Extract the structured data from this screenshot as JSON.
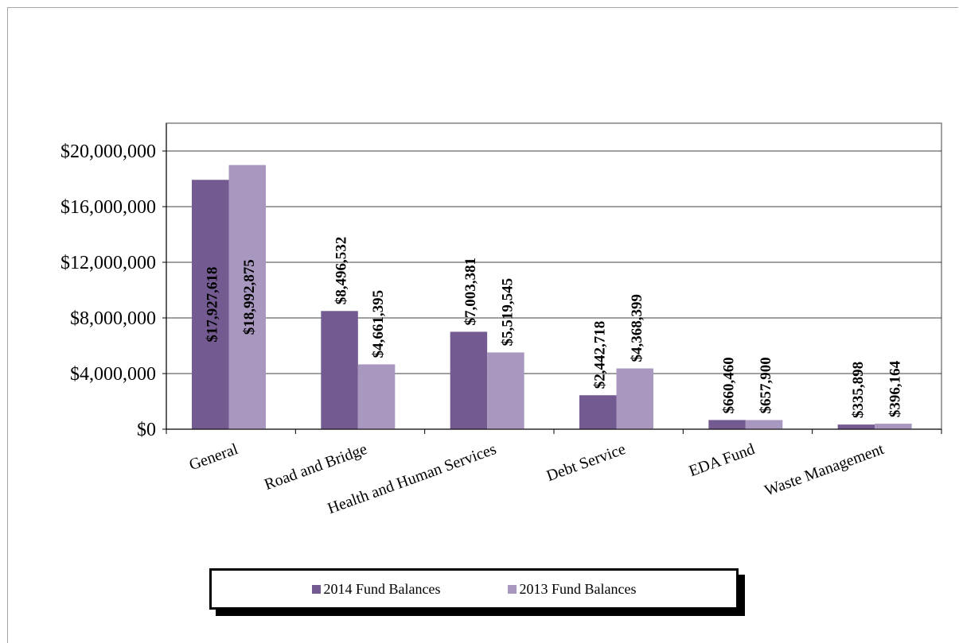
{
  "chart_data": {
    "type": "bar",
    "title": "",
    "xlabel": "",
    "ylabel": "",
    "categories": [
      "General",
      "Road and Bridge",
      "Health and Human Services",
      "Debt Service",
      "EDA Fund",
      "Waste Management"
    ],
    "series": [
      {
        "name": "2014 Fund Balances",
        "values": [
          17927618,
          8496532,
          7003381,
          2442718,
          660460,
          335898
        ],
        "labels": [
          "$17,927,618",
          "$8,496,532",
          "$7,003,381",
          "$2,442,718",
          "$660,460",
          "$335,898"
        ]
      },
      {
        "name": "2013 Fund Balances",
        "values": [
          18992875,
          4661395,
          5519545,
          4368399,
          657900,
          396164
        ],
        "labels": [
          "$18,992,875",
          "$4,661,395",
          "$5,519,545",
          "$4,368,399",
          "$657,900",
          "$396,164"
        ]
      }
    ],
    "ylim": [
      0,
      20000000
    ],
    "yticks": [
      0,
      4000000,
      8000000,
      12000000,
      16000000,
      20000000
    ],
    "ytick_labels": [
      "$0",
      "$4,000,000",
      "$8,000,000",
      "$12,000,000",
      "$16,000,000",
      "$20,000,000"
    ],
    "grid": true,
    "legend_position": "bottom",
    "colors": {
      "series_2014": "#735a91",
      "series_2013": "#a898c0",
      "grid": "#000000",
      "plot_border": "#808080"
    }
  }
}
